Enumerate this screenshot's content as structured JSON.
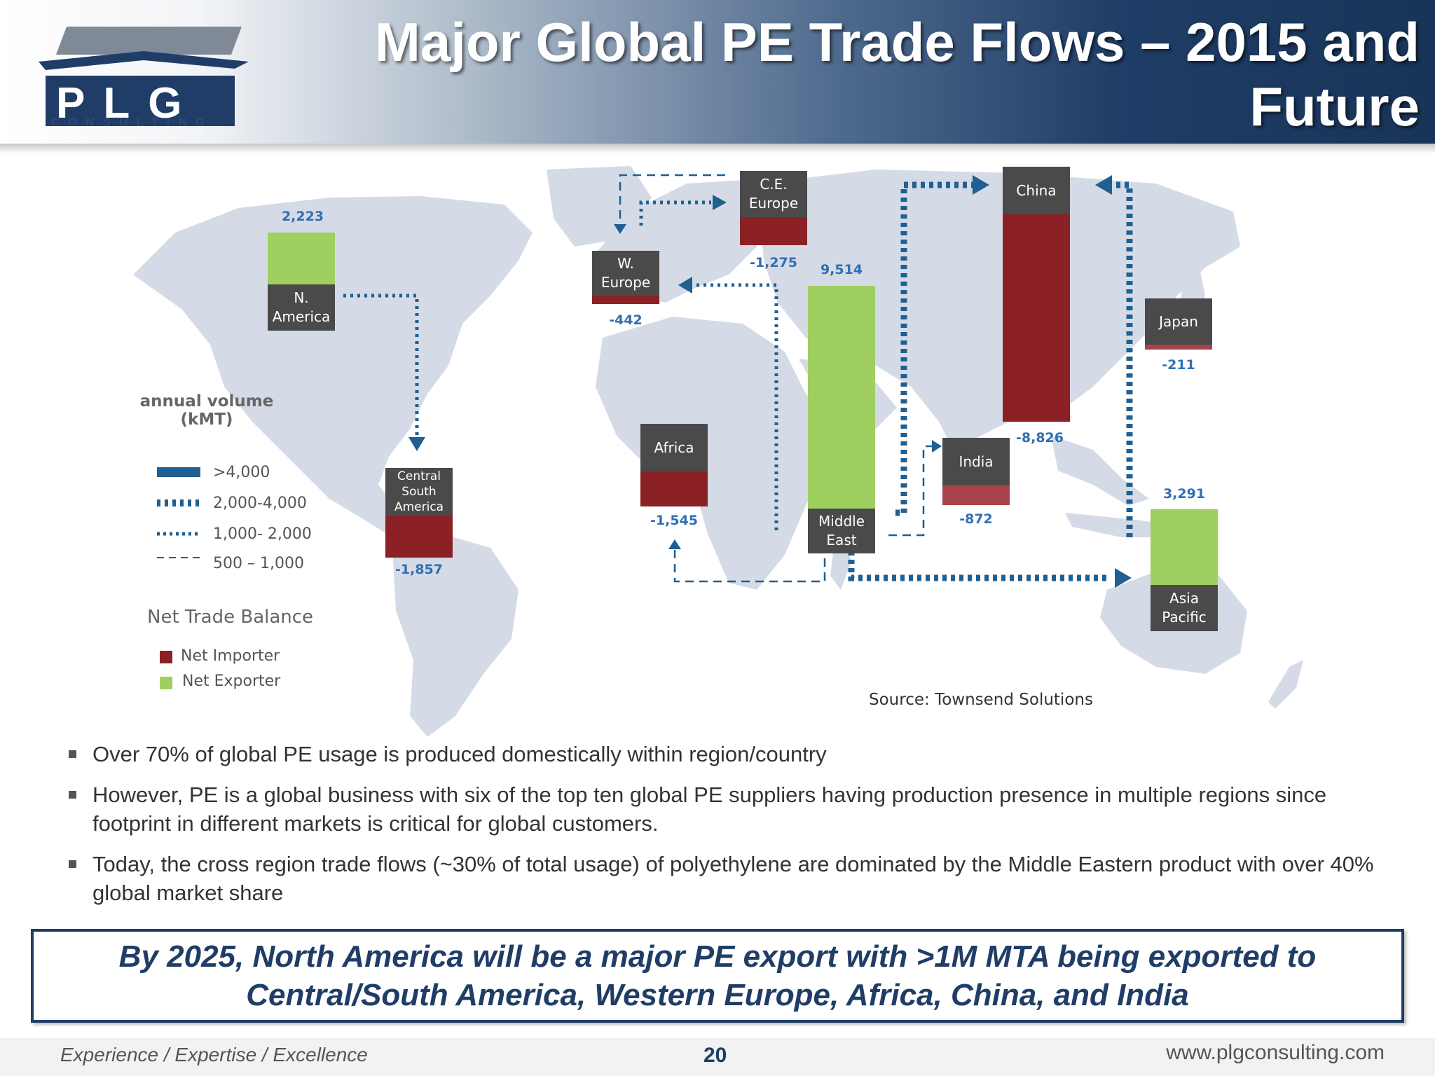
{
  "header": {
    "title": "Major Global PE Trade Flows – 2015 and Future",
    "logo_text": "PLG",
    "logo_tagline": "CONSULTING"
  },
  "colors": {
    "net_importer": "#8b2125",
    "net_exporter": "#9fcf5f",
    "flow_arrow": "#1f5f91",
    "header_dark": "#1f3d66",
    "map_land": "#d5dbe6"
  },
  "map": {
    "regions": [
      {
        "name": "N. America",
        "value": "2,223",
        "trade": "exporter"
      },
      {
        "name": "Central South America",
        "value": "-1,857",
        "trade": "importer"
      },
      {
        "name": "W. Europe",
        "value": "-442",
        "trade": "importer"
      },
      {
        "name": "C.E. Europe",
        "value": "-1,275",
        "trade": "importer"
      },
      {
        "name": "Africa",
        "value": "-1,545",
        "trade": "importer"
      },
      {
        "name": "Middle East",
        "value": "9,514",
        "trade": "exporter"
      },
      {
        "name": "India",
        "value": "-872",
        "trade": "importer"
      },
      {
        "name": "China",
        "value": "-8,826",
        "trade": "importer"
      },
      {
        "name": "Japan",
        "value": "-211",
        "trade": "importer"
      },
      {
        "name": "Asia Pacific",
        "value": "3,291",
        "trade": "exporter"
      }
    ],
    "labels": {
      "n_america": "N. America",
      "csa_1": "Central",
      "csa_2": "South",
      "csa_3": "America",
      "w_europe_1": "W.",
      "w_europe_2": "Europe",
      "ce_europe_1": "C.E.",
      "ce_europe_2": "Europe",
      "africa": "Africa",
      "middle_east_1": "Middle",
      "middle_east_2": "East",
      "india": "India",
      "china": "China",
      "japan": "Japan",
      "asia_pacific_1": "Asia",
      "asia_pacific_2": "Pacific"
    },
    "values": {
      "n_america": "2,223",
      "csa": "-1,857",
      "w_europe": "-442",
      "ce_europe": "-1,275",
      "africa": "-1,545",
      "middle_east": "9,514",
      "india": "-872",
      "china": "-8,826",
      "japan": "-211",
      "asia_pacific": "3,291"
    },
    "legend": {
      "title_1": "annual volume",
      "title_2": "(kMT)",
      "items": [
        ">4,000",
        "2,000-4,000",
        "1,000- 2,000",
        "500 – 1,000"
      ],
      "trade_title": "Net Trade Balance",
      "importer": "Net Importer",
      "exporter": "Net Exporter"
    },
    "source": "Source: Townsend Solutions"
  },
  "bullets": [
    "Over 70% of global PE usage is produced domestically within region/country",
    "However, PE is a global business with six of the top ten global PE suppliers having production presence in multiple regions since footprint in different markets is critical for global customers.",
    "Today, the cross region trade flows (~30% of total usage) of polyethylene are dominated by the Middle Eastern product with over 40% global market share"
  ],
  "callout": "By 2025, North America will be a major PE export with >1M MTA being exported to Central/South America, Western Europe, Africa, China, and India",
  "footer": {
    "left": "Experience  /  Expertise  /  Excellence",
    "page": "20",
    "right": "www.plgconsulting.com"
  }
}
